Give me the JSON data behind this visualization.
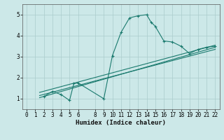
{
  "xlabel": "Humidex (Indice chaleur)",
  "background_color": "#cce8e8",
  "grid_color": "#aacccc",
  "line_color": "#1a7a6e",
  "xlim": [
    -0.5,
    22.5
  ],
  "ylim": [
    0.5,
    5.5
  ],
  "xticks": [
    0,
    1,
    2,
    3,
    4,
    5,
    6,
    8,
    9,
    10,
    11,
    12,
    13,
    14,
    15,
    16,
    17,
    18,
    19,
    20,
    21,
    22
  ],
  "yticks": [
    1,
    2,
    3,
    4,
    5
  ],
  "series": [
    {
      "x": [
        2,
        3,
        4,
        5,
        5.5,
        6,
        9,
        10,
        11,
        12,
        13,
        14,
        14.5,
        15,
        16,
        17,
        18,
        19,
        20,
        21,
        22
      ],
      "y": [
        1.1,
        1.35,
        1.2,
        0.92,
        1.72,
        1.75,
        1.0,
        3.05,
        4.15,
        4.85,
        4.95,
        5.0,
        4.65,
        4.45,
        3.75,
        3.7,
        3.5,
        3.15,
        3.35,
        3.45,
        3.5
      ],
      "with_markers": true
    },
    {
      "x": [
        1.5,
        22
      ],
      "y": [
        1.05,
        3.45
      ],
      "with_markers": false
    },
    {
      "x": [
        1.5,
        22
      ],
      "y": [
        1.15,
        3.35
      ],
      "with_markers": false
    },
    {
      "x": [
        1.5,
        22
      ],
      "y": [
        1.3,
        3.55
      ],
      "with_markers": false
    }
  ]
}
